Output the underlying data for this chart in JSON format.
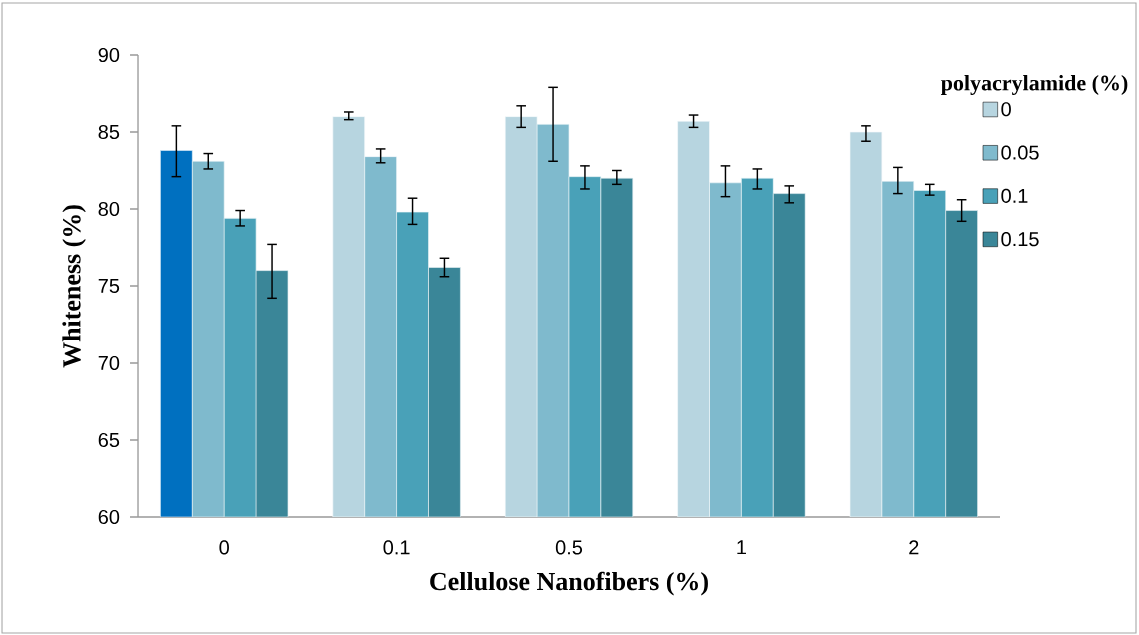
{
  "chart_data": {
    "type": "bar",
    "xlabel": "Cellulose Nanofibers (%)",
    "ylabel": "Whiteness (%)",
    "legend_title": "polyacrylamide (%)",
    "categories": [
      "0",
      "0.1",
      "0.5",
      "1",
      "2"
    ],
    "series": [
      {
        "name": "0",
        "color": "#b7d5e0",
        "colors": [
          "#0070c0",
          "#b7d5e0",
          "#b7d5e0",
          "#b7d5e0",
          "#b7d5e0"
        ],
        "values": [
          83.8,
          86.0,
          86.0,
          85.7,
          85.0
        ],
        "errors": [
          [
            82.1,
            85.4
          ],
          [
            85.8,
            86.3
          ],
          [
            85.3,
            86.7
          ],
          [
            85.3,
            86.1
          ],
          [
            84.4,
            85.4
          ]
        ]
      },
      {
        "name": "0.05",
        "color": "#7fbacd",
        "values": [
          83.1,
          83.4,
          85.5,
          81.7,
          81.8
        ],
        "errors": [
          [
            82.6,
            83.6
          ],
          [
            83.0,
            83.9
          ],
          [
            83.1,
            87.9
          ],
          [
            80.8,
            82.8
          ],
          [
            81.0,
            82.7
          ]
        ]
      },
      {
        "name": "0.1",
        "color": "#49a1b8",
        "values": [
          79.4,
          79.8,
          82.1,
          82.0,
          81.2
        ],
        "errors": [
          [
            78.9,
            79.9
          ],
          [
            79.0,
            80.7
          ],
          [
            81.3,
            82.8
          ],
          [
            81.3,
            82.6
          ],
          [
            80.9,
            81.6
          ]
        ]
      },
      {
        "name": "0.15",
        "color": "#3a8698",
        "values": [
          76.0,
          76.2,
          82.0,
          81.0,
          79.9
        ],
        "errors": [
          [
            74.2,
            77.7
          ],
          [
            75.6,
            76.8
          ],
          [
            81.6,
            82.5
          ],
          [
            80.4,
            81.5
          ],
          [
            79.2,
            80.6
          ]
        ]
      }
    ],
    "ylim": [
      60,
      90
    ],
    "yticks": [
      60,
      65,
      70,
      75,
      80,
      85,
      90
    ],
    "legend": "right"
  }
}
